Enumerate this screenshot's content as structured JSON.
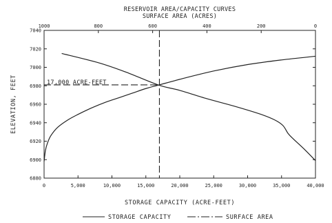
{
  "chart_data": {
    "type": "line",
    "title": "RESERVOIR AREA/CAPACITY CURVES",
    "subtitle": "SURFACE AREA (ACRES)",
    "xlabel": "STORAGE CAPACITY (ACRE-FEET)",
    "ylabel": "ELEVATION, FEET",
    "xlim": [
      0,
      40000
    ],
    "x2lim": [
      1000,
      0
    ],
    "ylim": [
      6880,
      7040
    ],
    "x_ticks": [
      "0",
      "5,000",
      "10,000",
      "15,000",
      "20,000",
      "25,000",
      "30,000",
      "35,000",
      "40,000"
    ],
    "x_tick_values": [
      0,
      5000,
      10000,
      15000,
      20000,
      25000,
      30000,
      35000,
      40000
    ],
    "x2_ticks": [
      "1000",
      "800",
      "600",
      "400",
      "200",
      "0"
    ],
    "x2_tick_values": [
      1000,
      800,
      600,
      400,
      200,
      0
    ],
    "y_ticks": [
      "6880",
      "6900",
      "6920",
      "6940",
      "6960",
      "6980",
      "7000",
      "7020",
      "7040"
    ],
    "y_tick_values": [
      6880,
      6900,
      6920,
      6940,
      6960,
      6980,
      7000,
      7020,
      7040
    ],
    "grid": false,
    "legend_position": "bottom",
    "series": [
      {
        "name": "STORAGE CAPACITY",
        "axis": "bottom",
        "style": "solid",
        "x": [
          0,
          200,
          500,
          1000,
          2000,
          3500,
          5000,
          7000,
          9000,
          11000,
          13000,
          15000,
          17000,
          20000,
          25000,
          30000,
          35000,
          40000
        ],
        "y": [
          6898,
          6910,
          6918,
          6926,
          6935,
          6943,
          6949,
          6956,
          6962,
          6967,
          6972,
          6977,
          6981,
          6987,
          6996,
          7003,
          7008,
          7012
        ]
      },
      {
        "name": "SURFACE AREA",
        "axis": "top",
        "style": "dash-dot",
        "x": [
          935,
          800,
          700,
          580,
          500,
          400,
          300,
          200,
          150,
          120,
          100,
          80,
          40,
          0
        ],
        "y": [
          7015,
          7005,
          6995,
          6981,
          6975,
          6966,
          6958,
          6949,
          6943,
          6937,
          6928,
          6922,
          6911,
          6899
        ]
      }
    ],
    "annotations": [
      {
        "text": "17,000 ACRE-FEET",
        "x": 17000,
        "y": 6981,
        "surface_area": 580
      }
    ],
    "line_color": "#222222"
  }
}
